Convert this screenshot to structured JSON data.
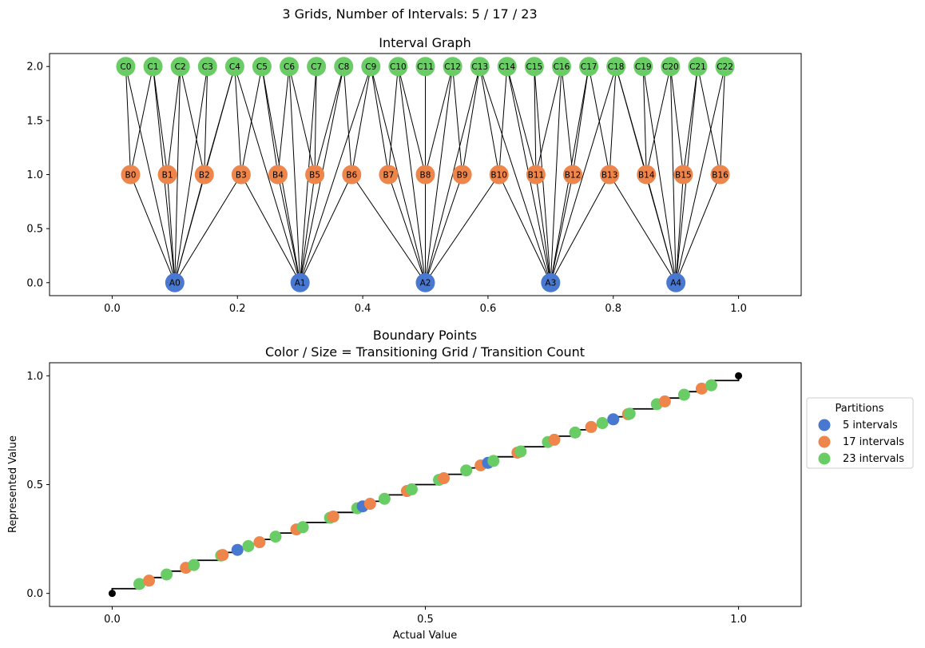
{
  "figure": {
    "suptitle": "3 Grids, Number of Intervals: 5 / 17 / 23"
  },
  "colors": {
    "grid5": "#4878d0",
    "grid17": "#ee854a",
    "grid23": "#6acc64",
    "edge": "#000000",
    "axis": "#000000"
  },
  "chart_data": [
    {
      "type": "scatter",
      "title": "Interval Graph",
      "xlabel": "",
      "ylabel": "",
      "xlim": [
        -0.1,
        1.1
      ],
      "ylim": [
        -0.12,
        2.12
      ],
      "xticks": [
        0.0,
        0.2,
        0.4,
        0.6,
        0.8,
        1.0
      ],
      "xtick_labels": [
        "0.0",
        "0.2",
        "0.4",
        "0.6",
        "0.8",
        "1.0"
      ],
      "yticks": [
        0.0,
        0.5,
        1.0,
        1.5,
        2.0
      ],
      "ytick_labels": [
        "0.0",
        "0.5",
        "1.0",
        "1.5",
        "2.0"
      ],
      "node_levels": [
        {
          "level": 0,
          "prefix": "A",
          "count": 5,
          "color": "#4878d0",
          "labels": [
            "A0",
            "A1",
            "A2",
            "A3",
            "A4"
          ],
          "x": [
            0.1,
            0.3,
            0.5,
            0.7,
            0.9
          ]
        },
        {
          "level": 1,
          "prefix": "B",
          "count": 17,
          "color": "#ee854a",
          "labels": [
            "B0",
            "B1",
            "B2",
            "B3",
            "B4",
            "B5",
            "B6",
            "B7",
            "B8",
            "B9",
            "B10",
            "B11",
            "B12",
            "B13",
            "B14",
            "B15",
            "B16"
          ],
          "x": [
            0.0294,
            0.0882,
            0.1471,
            0.2059,
            0.2647,
            0.3235,
            0.3824,
            0.4412,
            0.5,
            0.5588,
            0.6176,
            0.6765,
            0.7353,
            0.7941,
            0.8529,
            0.9118,
            0.9706
          ]
        },
        {
          "level": 2,
          "prefix": "C",
          "count": 23,
          "color": "#6acc64",
          "labels": [
            "C0",
            "C1",
            "C2",
            "C3",
            "C4",
            "C5",
            "C6",
            "C7",
            "C8",
            "C9",
            "C10",
            "C11",
            "C12",
            "C13",
            "C14",
            "C15",
            "C16",
            "C17",
            "C18",
            "C19",
            "C20",
            "C21",
            "C22"
          ],
          "x": [
            0.0217,
            0.0652,
            0.1087,
            0.1522,
            0.1957,
            0.2391,
            0.2826,
            0.3261,
            0.3696,
            0.413,
            0.4565,
            0.5,
            0.5435,
            0.587,
            0.6304,
            0.6739,
            0.7174,
            0.7609,
            0.8043,
            0.8478,
            0.8913,
            0.9348,
            0.9783
          ]
        }
      ],
      "edges_note": "Each node connects to every node of other grids whose interval overlaps it"
    },
    {
      "type": "scatter",
      "title": "Boundary Points\nColor / Size = Transitioning Grid / Transition Count",
      "title_lines": [
        "Boundary Points",
        "Color / Size = Transitioning Grid / Transition Count"
      ],
      "xlabel": "Actual Value",
      "ylabel": "Represented Value",
      "xlim": [
        -0.1,
        1.1
      ],
      "ylim": [
        -0.06,
        1.06
      ],
      "xticks": [
        0.0,
        0.5,
        1.0
      ],
      "xtick_labels": [
        "0.0",
        "0.5",
        "1.0"
      ],
      "yticks": [
        0.0,
        0.5,
        1.0
      ],
      "ytick_labels": [
        "0.0",
        "0.5",
        "1.0"
      ],
      "legend": {
        "title": "Partitions",
        "placement": "right outside",
        "entries": [
          {
            "label": "5 intervals",
            "color": "#4878d0"
          },
          {
            "label": "17 intervals",
            "color": "#ee854a"
          },
          {
            "label": "23 intervals",
            "color": "#6acc64"
          }
        ]
      },
      "grid_counts": [
        5,
        17,
        23
      ],
      "endpoints": [
        [
          0.0,
          0.0
        ],
        [
          1.0,
          1.0
        ]
      ],
      "step_function": "represented value = midpoint of interval between consecutive boundary points"
    }
  ]
}
